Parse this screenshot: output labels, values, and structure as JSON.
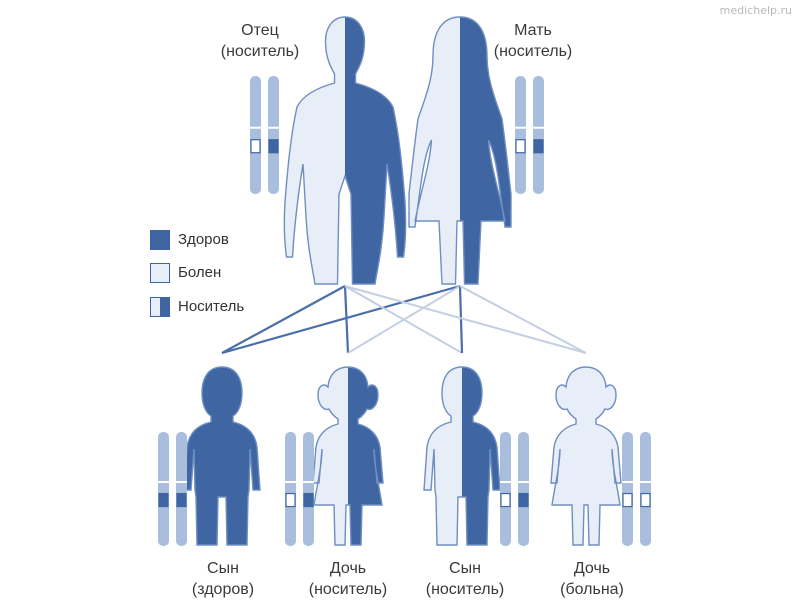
{
  "watermark": "medichelp.ru",
  "colors": {
    "dark": "#3f66a3",
    "light": "#e8eef7",
    "outline": "#6f8fc0",
    "chromosome": "#a9bedc",
    "line_dark": "#4a6fa8",
    "line_light": "#c3cfe2"
  },
  "parents": {
    "father": {
      "name": "Отец",
      "status": "(носитель)"
    },
    "mother": {
      "name": "Мать",
      "status": "(носитель)"
    }
  },
  "legend": [
    {
      "label": "Здоров",
      "fill": "dark"
    },
    {
      "label": "Болен",
      "fill": "light"
    },
    {
      "label": "Носитель",
      "fill": "half"
    }
  ],
  "children": [
    {
      "name": "Сын",
      "status": "(здоров)",
      "fill": "dark",
      "genes": [
        "dark",
        "dark"
      ]
    },
    {
      "name": "Дочь",
      "status": "(носитель)",
      "fill": "half",
      "genes": [
        "light",
        "dark"
      ]
    },
    {
      "name": "Сын",
      "status": "(носитель)",
      "fill": "half",
      "genes": [
        "light",
        "dark"
      ]
    },
    {
      "name": "Дочь",
      "status": "(больна)",
      "fill": "light",
      "genes": [
        "light",
        "light"
      ]
    }
  ]
}
